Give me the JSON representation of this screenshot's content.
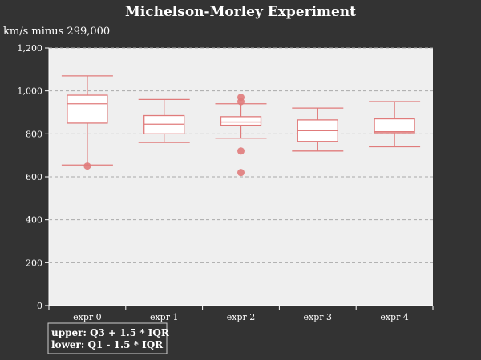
{
  "chart_data": {
    "type": "boxplot",
    "title": "Michelson-Morley Experiment",
    "ylabel": "km/s minus 299,000",
    "xlabel": "",
    "ylim": [
      0,
      1200
    ],
    "yticks": [
      0,
      200,
      400,
      600,
      800,
      1000,
      1200
    ],
    "ytick_labels": [
      "0",
      "200",
      "400",
      "600",
      "800",
      "1,000",
      "1,200"
    ],
    "grid": true,
    "categories": [
      "expr 0",
      "expr 1",
      "expr 2",
      "expr 3",
      "expr 4"
    ],
    "boxes": [
      {
        "category": "expr 0",
        "lower_whisker": 655,
        "q1": 850,
        "median": 940,
        "q3": 980,
        "upper_whisker": 1070,
        "outliers": [
          650
        ]
      },
      {
        "category": "expr 1",
        "lower_whisker": 760,
        "q1": 800,
        "median": 845,
        "q3": 885,
        "upper_whisker": 960,
        "outliers": []
      },
      {
        "category": "expr 2",
        "lower_whisker": 780,
        "q1": 840,
        "median": 855,
        "q3": 880,
        "upper_whisker": 940,
        "outliers": [
          970,
          950,
          720,
          620
        ]
      },
      {
        "category": "expr 3",
        "lower_whisker": 720,
        "q1": 765,
        "median": 815,
        "q3": 865,
        "upper_whisker": 920,
        "outliers": []
      },
      {
        "category": "expr 4",
        "lower_whisker": 740,
        "q1": 805,
        "median": 810,
        "q3": 870,
        "upper_whisker": 950,
        "outliers": []
      }
    ],
    "legend": {
      "placement": "bottom-left",
      "lines": [
        "upper: Q3 + 1.5 * IQR",
        "lower: Q1 - 1.5 * IQR"
      ]
    },
    "colors": {
      "background": "#333333",
      "plot_background": "#efefef",
      "box_stroke": "#e07b7b",
      "outlier_fill": "#e07b7b",
      "grid": "#aaaaaa",
      "text": "#ffffff"
    }
  }
}
